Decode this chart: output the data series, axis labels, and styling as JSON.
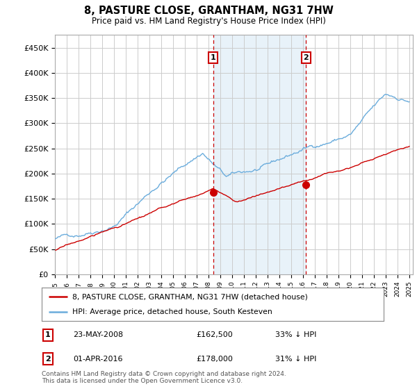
{
  "title": "8, PASTURE CLOSE, GRANTHAM, NG31 7HW",
  "subtitle": "Price paid vs. HM Land Registry's House Price Index (HPI)",
  "footnote": "Contains HM Land Registry data © Crown copyright and database right 2024.\nThis data is licensed under the Open Government Licence v3.0.",
  "legend_line1": "8, PASTURE CLOSE, GRANTHAM, NG31 7HW (detached house)",
  "legend_line2": "HPI: Average price, detached house, South Kesteven",
  "annotation1": {
    "label": "1",
    "date": "23-MAY-2008",
    "price": "£162,500",
    "pct": "33% ↓ HPI",
    "x_year": 2008.38
  },
  "annotation2": {
    "label": "2",
    "date": "01-APR-2016",
    "price": "£178,000",
    "pct": "31% ↓ HPI",
    "x_year": 2016.25
  },
  "ylim": [
    0,
    475000
  ],
  "yticks": [
    0,
    50000,
    100000,
    150000,
    200000,
    250000,
    300000,
    350000,
    400000,
    450000
  ],
  "ytick_labels": [
    "£0",
    "£50K",
    "£100K",
    "£150K",
    "£200K",
    "£250K",
    "£300K",
    "£350K",
    "£400K",
    "£450K"
  ],
  "xtick_years": [
    1995,
    1996,
    1997,
    1998,
    1999,
    2000,
    2001,
    2002,
    2003,
    2004,
    2005,
    2006,
    2007,
    2008,
    2009,
    2010,
    2011,
    2012,
    2013,
    2014,
    2015,
    2016,
    2017,
    2018,
    2019,
    2020,
    2021,
    2022,
    2023,
    2024,
    2025
  ],
  "hpi_color": "#6aacdc",
  "property_color": "#cc0000",
  "vline_color": "#cc0000",
  "background_color": "#ffffff",
  "grid_color": "#cccccc",
  "shaded_region_color": "#d6e8f5",
  "shaded_alpha": 0.55,
  "sale1_price": 162500,
  "sale2_price": 178000
}
